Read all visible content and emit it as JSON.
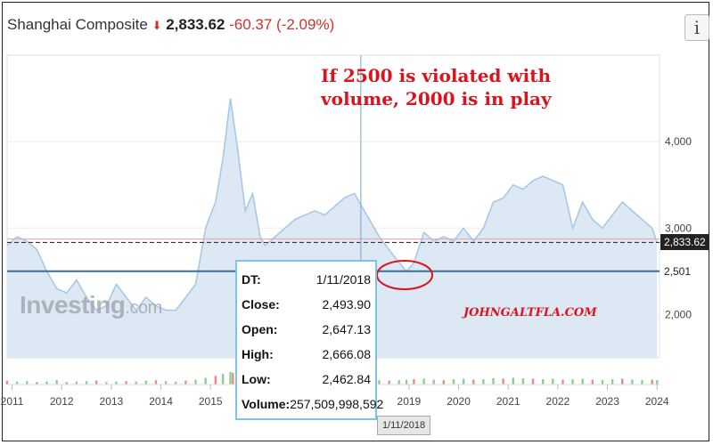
{
  "header": {
    "name": "Shanghai Composite",
    "price": "2,833.62",
    "change": "-60.37 (-2.09%)"
  },
  "info_button": "i",
  "annotation": {
    "line1": "If 2500 is violated with",
    "line2": "volume, 2000 is in play"
  },
  "watermark": "JOHNGALTFLA.COM",
  "logo": {
    "main": "Investing",
    "suffix": ".com"
  },
  "tooltip": {
    "rows": [
      {
        "key": "DT:",
        "value": "1/11/2018"
      },
      {
        "key": "Close:",
        "value": "2,493.90"
      },
      {
        "key": "Open:",
        "value": "2,647.13"
      },
      {
        "key": "High:",
        "value": "2,666.08"
      },
      {
        "key": "Low:",
        "value": "2,462.84"
      },
      {
        "key": "Volume:",
        "value": "257,509,998,592"
      }
    ]
  },
  "crosshair_date": "1/11/2018",
  "price_labels": {
    "current": "2,833.62",
    "support": "2,501"
  },
  "colors": {
    "accent_red": "#d9141e",
    "line": "#a9c8e4",
    "fill": "#dce9f4",
    "support_line": "#3a6d96"
  },
  "chart_data": {
    "type": "area",
    "x": [
      2010.9,
      2011.1,
      2011.3,
      2011.5,
      2011.7,
      2011.9,
      2012.1,
      2012.3,
      2012.5,
      2012.7,
      2012.9,
      2013.1,
      2013.3,
      2013.5,
      2013.7,
      2013.9,
      2014.1,
      2014.3,
      2014.5,
      2014.7,
      2014.9,
      2015.1,
      2015.25,
      2015.4,
      2015.45,
      2015.55,
      2015.7,
      2015.85,
      2016.0,
      2016.1,
      2016.3,
      2016.5,
      2016.7,
      2016.9,
      2017.1,
      2017.3,
      2017.5,
      2017.7,
      2017.9,
      2018.0,
      2018.2,
      2018.4,
      2018.6,
      2018.8,
      2018.95,
      2019.1,
      2019.3,
      2019.5,
      2019.7,
      2019.9,
      2020.1,
      2020.3,
      2020.5,
      2020.7,
      2020.9,
      2021.1,
      2021.3,
      2021.5,
      2021.7,
      2021.9,
      2022.1,
      2022.3,
      2022.5,
      2022.7,
      2022.9,
      2023.1,
      2023.3,
      2023.5,
      2023.7,
      2023.9,
      2024.0
    ],
    "y": [
      2800,
      2900,
      2850,
      2750,
      2500,
      2300,
      2250,
      2400,
      2200,
      2050,
      2100,
      2350,
      2200,
      2050,
      2200,
      2100,
      2050,
      2050,
      2200,
      2350,
      3000,
      3300,
      3800,
      4500,
      4300,
      3900,
      3200,
      3400,
      2900,
      2800,
      2900,
      3000,
      3100,
      3150,
      3200,
      3150,
      3250,
      3350,
      3400,
      3300,
      3100,
      2900,
      2750,
      2600,
      2500,
      2600,
      2950,
      2850,
      2900,
      2850,
      3000,
      2850,
      3000,
      3300,
      3350,
      3500,
      3450,
      3550,
      3600,
      3550,
      3500,
      3000,
      3300,
      3100,
      3000,
      3150,
      3300,
      3200,
      3100,
      3000,
      2833.62
    ],
    "xticks": [
      "2011",
      "2012",
      "2013",
      "2014",
      "2015",
      "2016",
      "2017",
      "2018",
      "2019",
      "2020",
      "2021",
      "2022",
      "2023",
      "2024"
    ],
    "yticks": [
      2000,
      3000,
      4000
    ],
    "ytick_labels": [
      "2,000",
      "3,000",
      "4,000"
    ],
    "ylim": [
      1500,
      5000
    ],
    "xlim": [
      2010.9,
      2024.05
    ],
    "reference_lines": [
      {
        "label": "2,833.62",
        "value": 2833.62,
        "style": "dashed"
      },
      {
        "label": "2,501",
        "value": 2501,
        "style": "solid"
      }
    ],
    "volume": [
      8,
      6,
      7,
      5,
      6,
      9,
      5,
      6,
      7,
      8,
      5,
      6,
      7,
      6,
      8,
      9,
      7,
      6,
      8,
      10,
      14,
      18,
      22,
      26,
      24,
      20,
      16,
      14,
      12,
      10,
      9,
      8,
      9,
      10,
      11,
      10,
      9,
      10,
      11,
      12,
      10,
      9,
      8,
      9,
      10,
      11,
      12,
      10,
      9,
      11,
      12,
      10,
      11,
      13,
      12,
      14,
      13,
      12,
      11,
      12,
      10,
      11,
      12,
      10,
      9,
      11,
      12,
      10,
      9,
      10,
      9
    ],
    "crosshair_x": 2018.03
  }
}
